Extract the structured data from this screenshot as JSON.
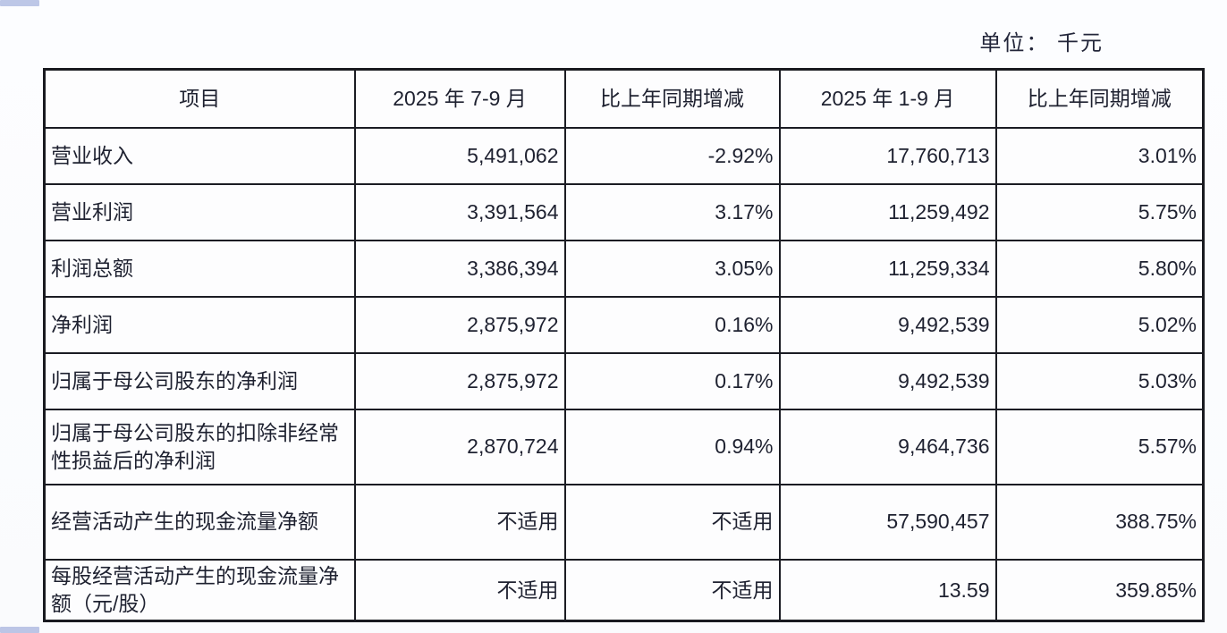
{
  "unit_label": "单位： 千元",
  "colors": {
    "text": "#1e2130",
    "border": "#1b1c23",
    "background": "#fbfcfe",
    "corner_accent": "#6076c4"
  },
  "table": {
    "headers": {
      "item": "项目",
      "q3_period": "2025 年 7-9 月",
      "q3_yoy": "比上年同期增减",
      "ytd_period": "2025 年 1-9 月",
      "ytd_yoy": "比上年同期增减"
    },
    "rows": [
      {
        "label": "营业收入",
        "q3": "5,491,062",
        "q3_yoy": "-2.92%",
        "ytd": "17,760,713",
        "ytd_yoy": "3.01%"
      },
      {
        "label": "营业利润",
        "q3": "3,391,564",
        "q3_yoy": "3.17%",
        "ytd": "11,259,492",
        "ytd_yoy": "5.75%"
      },
      {
        "label": "利润总额",
        "q3": "3,386,394",
        "q3_yoy": "3.05%",
        "ytd": "11,259,334",
        "ytd_yoy": "5.80%"
      },
      {
        "label": "净利润",
        "q3": "2,875,972",
        "q3_yoy": "0.16%",
        "ytd": "9,492,539",
        "ytd_yoy": "5.02%"
      },
      {
        "label": "归属于母公司股东的净利润",
        "q3": "2,875,972",
        "q3_yoy": "0.17%",
        "ytd": "9,492,539",
        "ytd_yoy": "5.03%"
      },
      {
        "label": "归属于母公司股东的扣除非经常性损益后的净利润",
        "q3": "2,870,724",
        "q3_yoy": "0.94%",
        "ytd": "9,464,736",
        "ytd_yoy": "5.57%"
      },
      {
        "label": "经营活动产生的现金流量净额",
        "q3": "不适用",
        "q3_yoy": "不适用",
        "ytd": "57,590,457",
        "ytd_yoy": "388.75%"
      },
      {
        "label": "每股经营活动产生的现金流量净额（元/股）",
        "q3": "不适用",
        "q3_yoy": "不适用",
        "ytd": "13.59",
        "ytd_yoy": "359.85%"
      }
    ]
  }
}
